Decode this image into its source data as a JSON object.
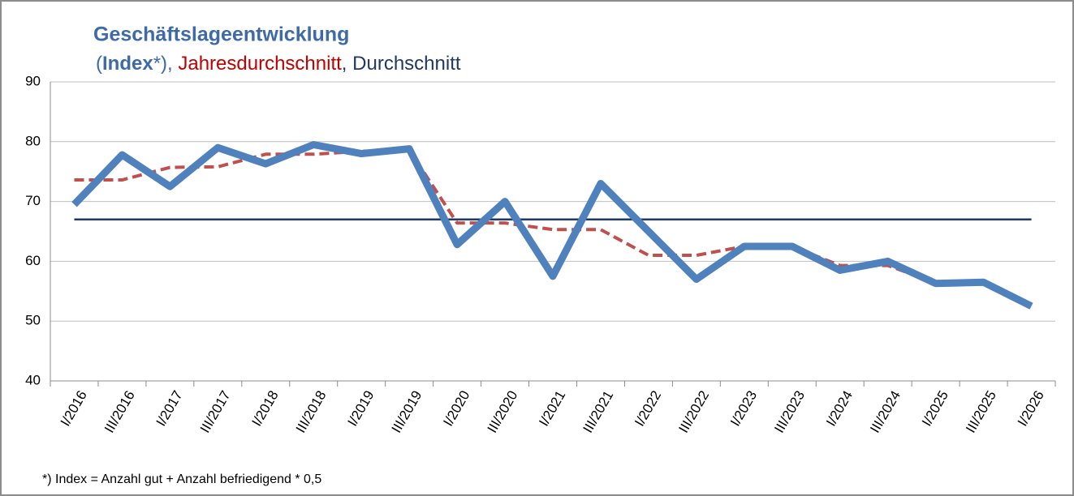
{
  "chart_data": {
    "type": "line",
    "title": "Geschäftslageentwicklung",
    "legend_separators": [
      "(",
      "*), ",
      ", "
    ],
    "footnote": "*) Index = Anzahl gut + Anzahl befriedigend *  0,5",
    "categories": [
      "I/2016",
      "III/2016",
      "I/2017",
      "III/2017",
      "I/2018",
      "III/2018",
      "I/2019",
      "III/2019",
      "I/2020",
      "III/2020",
      "I/2021",
      "III/2021",
      "I/2022",
      "III/2022",
      "I/2023",
      "III/2023",
      "I/2024",
      "III/2024",
      "I/2025",
      "III/2025",
      "I/2026"
    ],
    "series": [
      {
        "name": "Index",
        "color": "#4f81bd",
        "line_style": "solid",
        "values": [
          69.5,
          77.8,
          72.5,
          79,
          76.3,
          79.5,
          78,
          78.8,
          62.8,
          70,
          57.5,
          73,
          65,
          57,
          62.5,
          62.5,
          58.5,
          60,
          56.3,
          56.5,
          52.5
        ]
      },
      {
        "name": "Jahresdurchschnitt",
        "color": "#c0504d",
        "line_style": "dashed",
        "values": [
          73.6,
          73.6,
          75.7,
          75.8,
          77.9,
          77.9,
          78.4,
          78.6,
          66.4,
          66.4,
          65.3,
          65.3,
          61,
          61,
          62.5,
          62.5,
          59.3,
          59.3,
          56.4,
          56.4,
          null
        ]
      },
      {
        "name": "Durchschnitt",
        "color": "#1f3864",
        "line_style": "solid",
        "values": [
          67,
          67,
          67,
          67,
          67,
          67,
          67,
          67,
          67,
          67,
          67,
          67,
          67,
          67,
          67,
          67,
          67,
          67,
          67,
          67,
          67
        ]
      }
    ],
    "ylim": [
      40,
      90
    ],
    "yticks": [
      40,
      50,
      60,
      70,
      80,
      90
    ],
    "grid": true
  }
}
